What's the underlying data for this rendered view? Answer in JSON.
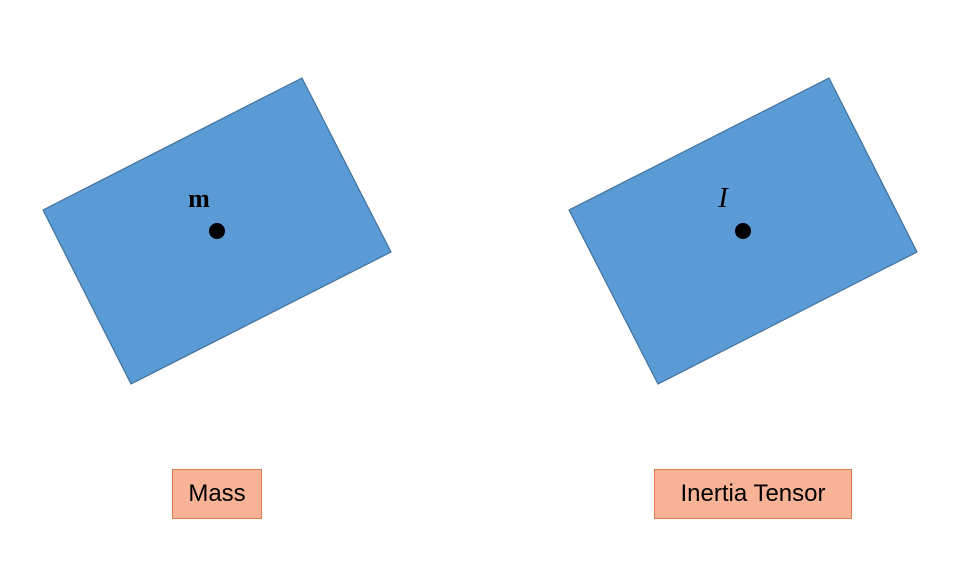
{
  "colors": {
    "block_fill": "#5b9bd5",
    "block_stroke": "#41719c",
    "label_fill": "#f8b295",
    "label_border": "#e07a50",
    "point": "#000000"
  },
  "left_panel": {
    "symbol": "m",
    "label": "Mass"
  },
  "right_panel": {
    "symbol": "I",
    "label": "Inertia Tensor"
  }
}
